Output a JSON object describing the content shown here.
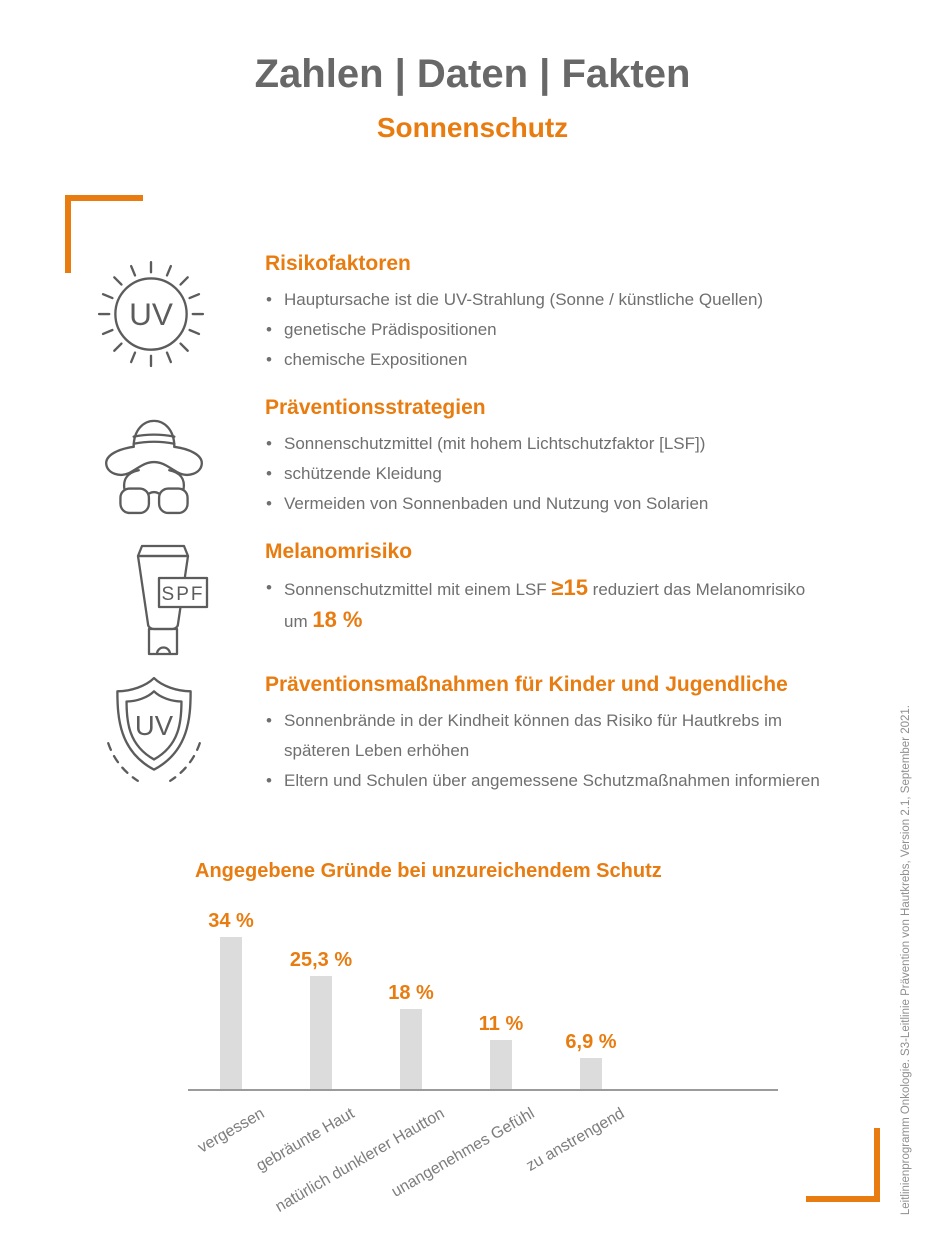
{
  "header": {
    "title": "Zahlen | Daten | Fakten",
    "subtitle": "Sonnenschutz"
  },
  "colors": {
    "accent_orange": "#e87c10",
    "title_gray": "#686868",
    "body_gray": "#6f6f6f",
    "icon_gray": "#5c5c5c",
    "bar_gray": "#dcdcdc",
    "axis_gray": "#9b9b9b"
  },
  "sections": [
    {
      "icon": "uv-sun-icon",
      "heading": "Risikofaktoren",
      "bullets": [
        "Hauptursache ist die UV-Strahlung (Sonne / künstliche Quellen)",
        "genetische Prädispositionen",
        "chemische Expositionen"
      ]
    },
    {
      "icon": "hat-sunglasses-icon",
      "heading": "Präventionsstrategien",
      "bullets": [
        "Sonnenschutzmittel (mit hohem Lichtschutzfaktor [LSF])",
        "schützende Kleidung",
        "Vermeiden von Sonnenbaden und Nutzung von Solarien"
      ]
    },
    {
      "icon": "spf-tube-icon",
      "heading": "Melanomrisiko",
      "bullet_rich": {
        "pre": "Sonnenschutzmittel mit einem LSF ",
        "highlight1": "≥15",
        "mid": " reduziert das Melanomrisiko",
        "line2_pre": "um ",
        "highlight2": "18 %"
      }
    },
    {
      "icon": "uv-shield-icon",
      "heading": "Präventionsmaßnahmen für Kinder und Jugendliche",
      "bullet1_line1": "Sonnenbrände in der Kindheit können das Risiko für Hautkrebs im",
      "bullet1_line2": "späteren Leben erhöhen",
      "bullet2": "Eltern und Schulen über angemessene Schutzmaßnahmen informieren"
    }
  ],
  "icon_labels": {
    "sun_text": "UV",
    "tube_text": "SPF",
    "shield_text": "UV"
  },
  "chart_data": {
    "type": "bar",
    "title": "Angegebene Gründe bei unzureichendem Schutz",
    "categories": [
      "vergessen",
      "gebräunte Haut",
      "natürlich dunklerer Hautton",
      "unangenehmes Gefühl",
      "zu anstrengend"
    ],
    "values": [
      34,
      25.3,
      18,
      11,
      6.9
    ],
    "value_labels": [
      "34 %",
      "25,3 %",
      "18 %",
      "11 %",
      "6,9 %"
    ],
    "xlabel": "",
    "ylabel": "",
    "ylim": [
      0,
      38
    ],
    "grid": false,
    "legend": false,
    "bar_color": "#dcdcdc",
    "value_label_color": "#e87c10"
  },
  "source_note": "Leitlinienprogramm Onkologie. S3-Leitlinie Prävention von Hautkrebs, Version 2.1, September 2021."
}
